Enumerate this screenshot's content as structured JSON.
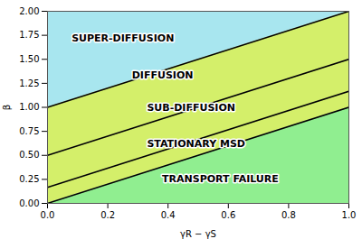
{
  "chart_data": {
    "type": "area",
    "x_label": "γR − γS",
    "y_label": "β",
    "xlim": [
      0.0,
      1.0
    ],
    "ylim": [
      0.0,
      2.0
    ],
    "xticks": [
      {
        "value": 0.0,
        "label": "0.0"
      },
      0.2,
      0.4,
      0.6,
      0.8,
      {
        "value": 1.0,
        "label": "1.0"
      }
    ],
    "yticks": [
      {
        "value": 0.0,
        "label": "0.00"
      },
      0.25,
      {
        "value": 0.5,
        "label": "0.50"
      },
      0.75,
      {
        "value": 1.0,
        "label": "1.00"
      },
      1.25,
      {
        "value": 1.5,
        "label": "1.50"
      },
      1.75,
      {
        "value": 2.0,
        "label": "2.00"
      }
    ],
    "x": [
      0.0,
      1.0
    ],
    "areas": [
      {
        "color": "#a8e6ef",
        "low": [
          1.0,
          2.0
        ],
        "high": [
          2.0,
          2.0
        ]
      },
      {
        "color": "#d4ef6a",
        "low": [
          0.5,
          1.5
        ],
        "high": [
          1.0,
          2.0
        ]
      },
      {
        "color": "#d4ef6a",
        "low": [
          0.1667,
          1.1667
        ],
        "high": [
          0.5,
          1.5
        ]
      },
      {
        "color": "#d4ef6a",
        "low": [
          0.0,
          1.0
        ],
        "high": [
          0.1667,
          1.1667
        ]
      },
      {
        "color": "#90ee90",
        "low": [
          0.0,
          0.0
        ],
        "high": [
          0.0,
          1.0
        ]
      }
    ],
    "series": [
      {
        "color": "black",
        "values": [
          1.0,
          2.0
        ]
      },
      {
        "color": "black",
        "values": [
          0.5,
          1.5
        ]
      },
      {
        "color": "black",
        "values": [
          0.1667,
          1.1667
        ]
      },
      {
        "color": "black",
        "values": [
          0.0,
          1.0
        ]
      }
    ],
    "annotations": [
      {
        "text": "SUPER-DIFFUSION",
        "x": 0.08,
        "y": 1.72
      },
      {
        "text": "DIFFUSION",
        "x": 0.28,
        "y": 1.33
      },
      {
        "text": "SUB-DIFFUSION",
        "x": 0.33,
        "y": 1.0
      },
      {
        "text": "STATIONARY MSD",
        "x": 0.33,
        "y": 0.62
      },
      {
        "text": "TRANSPORT FAILURE",
        "x": 0.38,
        "y": 0.25
      }
    ]
  }
}
